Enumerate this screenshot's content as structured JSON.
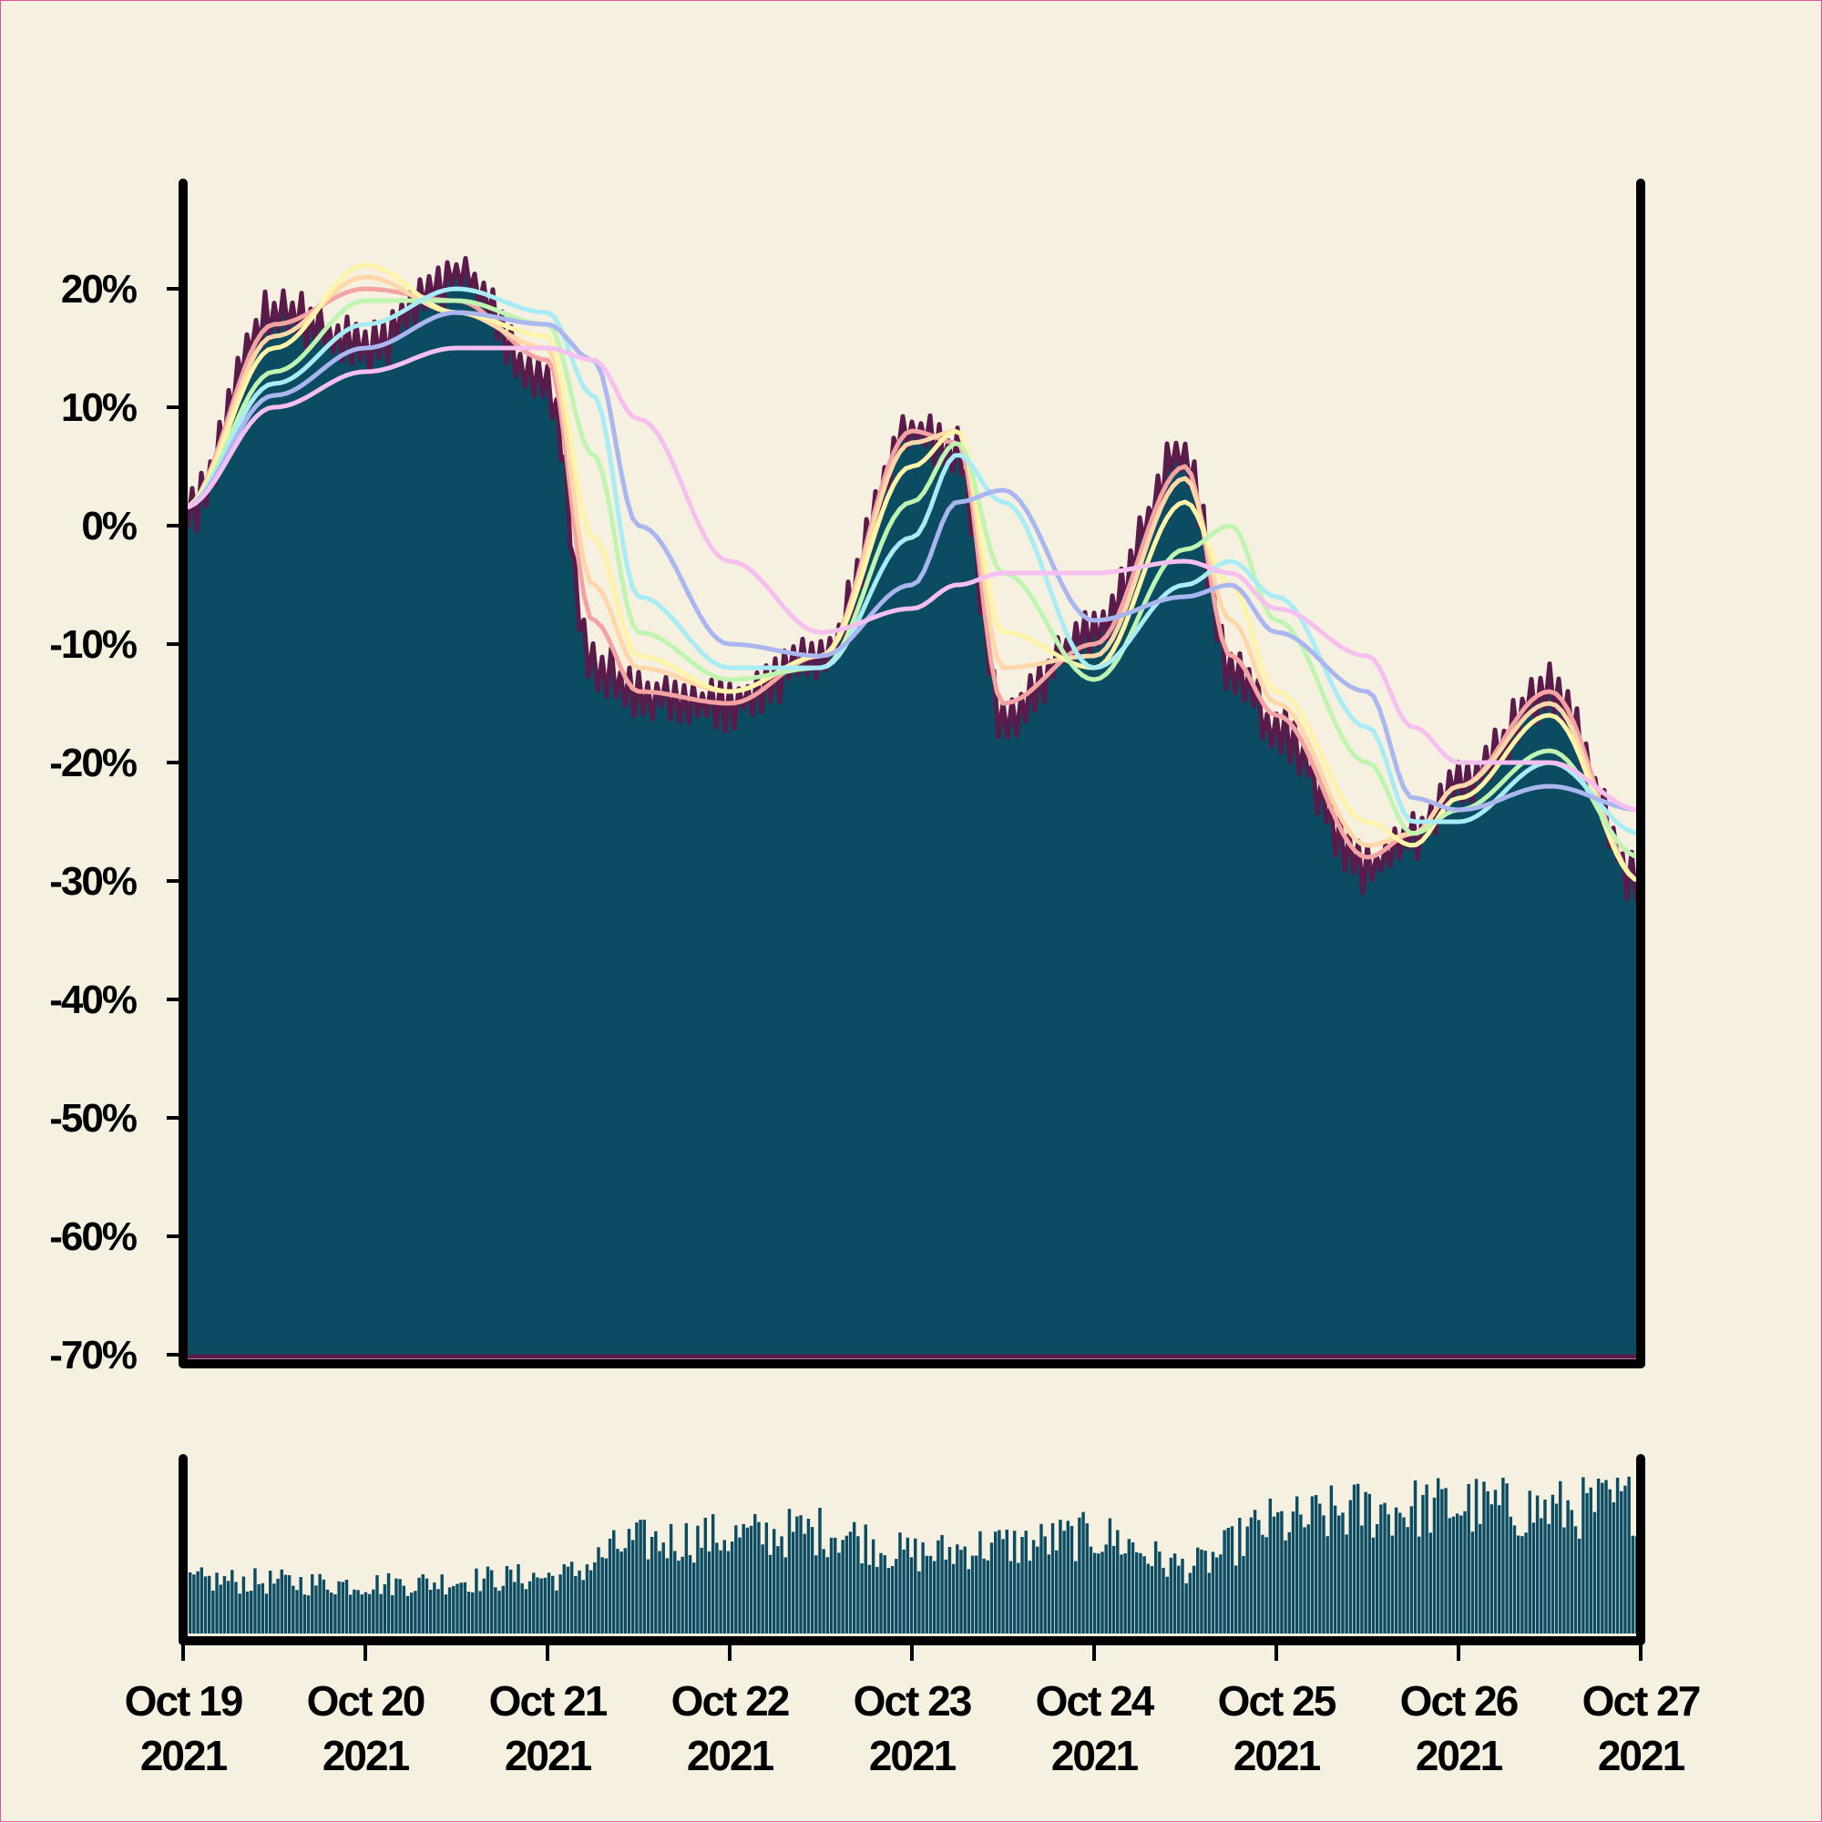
{
  "chart_data": {
    "type": "area",
    "x_start": "2021-10-19",
    "x_end": "2021-10-27",
    "ylim": [
      -70,
      28
    ],
    "y_ticks": [
      {
        "value": 20,
        "label": "20%"
      },
      {
        "value": 10,
        "label": "10%"
      },
      {
        "value": 0,
        "label": "0%"
      },
      {
        "value": -10,
        "label": "-10%"
      },
      {
        "value": -20,
        "label": "-20%"
      },
      {
        "value": -30,
        "label": "-30%"
      },
      {
        "value": -40,
        "label": "-40%"
      },
      {
        "value": -50,
        "label": "-50%"
      },
      {
        "value": -60,
        "label": "-60%"
      },
      {
        "value": -70,
        "label": "-70%"
      }
    ],
    "x_ticks": [
      {
        "value": "2021-10-19",
        "line1": "Oct 19",
        "line2": "2021"
      },
      {
        "value": "2021-10-20",
        "line1": "Oct 20",
        "line2": "2021"
      },
      {
        "value": "2021-10-21",
        "line1": "Oct 21",
        "line2": "2021"
      },
      {
        "value": "2021-10-22",
        "line1": "Oct 22",
        "line2": "2021"
      },
      {
        "value": "2021-10-23",
        "line1": "Oct 23",
        "line2": "2021"
      },
      {
        "value": "2021-10-24",
        "line1": "Oct 24",
        "line2": "2021"
      },
      {
        "value": "2021-10-25",
        "line1": "Oct 25",
        "line2": "2021"
      },
      {
        "value": "2021-10-26",
        "line1": "Oct 26",
        "line2": "2021"
      },
      {
        "value": "2021-10-27",
        "line1": "Oct 27",
        "line2": "2021"
      }
    ],
    "price_change_pct": {
      "x": [
        "2021-10-19",
        "2021-10-19 12:00",
        "2021-10-20",
        "2021-10-20 12:00",
        "2021-10-21",
        "2021-10-21 06:00",
        "2021-10-21 12:00",
        "2021-10-22",
        "2021-10-22 12:00",
        "2021-10-23",
        "2021-10-23 06:00",
        "2021-10-23 12:00",
        "2021-10-24",
        "2021-10-24 12:00",
        "2021-10-24 18:00",
        "2021-10-25",
        "2021-10-25 12:00",
        "2021-10-25 18:00",
        "2021-10-26",
        "2021-10-26 12:00",
        "2021-10-27"
      ],
      "y": [
        1,
        18,
        15,
        21,
        12,
        -12,
        -14,
        -15,
        -11,
        8,
        6,
        -16,
        -9,
        6,
        -12,
        -17,
        -29,
        -26,
        -22,
        -14,
        -30
      ]
    },
    "moving_averages": [
      {
        "color": "#f4a3a3",
        "x": [
          "2021-10-19",
          "2021-10-19 12:00",
          "2021-10-20",
          "2021-10-20 12:00",
          "2021-10-21",
          "2021-10-21 06:00",
          "2021-10-21 12:00",
          "2021-10-22",
          "2021-10-22 12:00",
          "2021-10-23",
          "2021-10-23 06:00",
          "2021-10-23 12:00",
          "2021-10-24",
          "2021-10-24 12:00",
          "2021-10-24 18:00",
          "2021-10-25",
          "2021-10-25 12:00",
          "2021-10-25 18:00",
          "2021-10-26",
          "2021-10-26 12:00",
          "2021-10-27"
        ],
        "y": [
          1.5,
          17,
          20,
          19,
          14,
          -8,
          -14,
          -15,
          -11,
          8,
          7,
          -15,
          -10,
          5,
          -11,
          -16,
          -28,
          -26,
          -22,
          -14,
          -30
        ]
      },
      {
        "color": "#ffd7a8",
        "x": [
          "2021-10-19",
          "2021-10-19 12:00",
          "2021-10-20",
          "2021-10-20 12:00",
          "2021-10-21",
          "2021-10-21 06:00",
          "2021-10-21 12:00",
          "2021-10-22",
          "2021-10-22 12:00",
          "2021-10-23",
          "2021-10-23 06:00",
          "2021-10-23 12:00",
          "2021-10-24",
          "2021-10-24 12:00",
          "2021-10-24 18:00",
          "2021-10-25",
          "2021-10-25 12:00",
          "2021-10-25 18:00",
          "2021-10-26",
          "2021-10-26 12:00",
          "2021-10-27"
        ],
        "y": [
          1.5,
          16,
          21,
          18,
          15,
          -5,
          -12,
          -14,
          -11,
          7,
          8,
          -12,
          -11,
          4,
          -8,
          -15,
          -27,
          -26,
          -22,
          -15,
          -30
        ]
      },
      {
        "color": "#fff4a8",
        "x": [
          "2021-10-19",
          "2021-10-19 12:00",
          "2021-10-20",
          "2021-10-20 12:00",
          "2021-10-21",
          "2021-10-21 06:00",
          "2021-10-21 12:00",
          "2021-10-22",
          "2021-10-22 12:00",
          "2021-10-23",
          "2021-10-23 06:00",
          "2021-10-23 12:00",
          "2021-10-24",
          "2021-10-24 12:00",
          "2021-10-24 18:00",
          "2021-10-25",
          "2021-10-25 12:00",
          "2021-10-25 18:00",
          "2021-10-26",
          "2021-10-26 12:00",
          "2021-10-27"
        ],
        "y": [
          1.5,
          15,
          22,
          18,
          16,
          -1,
          -11,
          -14,
          -11,
          5,
          8,
          -9,
          -12,
          2,
          -5,
          -14,
          -25,
          -27,
          -23,
          -16,
          -30
        ]
      },
      {
        "color": "#bff5b0",
        "x": [
          "2021-10-19",
          "2021-10-19 12:00",
          "2021-10-20",
          "2021-10-20 12:00",
          "2021-10-21",
          "2021-10-21 06:00",
          "2021-10-21 12:00",
          "2021-10-22",
          "2021-10-22 12:00",
          "2021-10-23",
          "2021-10-23 06:00",
          "2021-10-23 12:00",
          "2021-10-24",
          "2021-10-24 12:00",
          "2021-10-24 18:00",
          "2021-10-25",
          "2021-10-25 12:00",
          "2021-10-25 18:00",
          "2021-10-26",
          "2021-10-26 12:00",
          "2021-10-27"
        ],
        "y": [
          1.5,
          13,
          19,
          19,
          17,
          6,
          -9,
          -13,
          -12,
          2,
          7,
          -4,
          -13,
          -2,
          0,
          -8,
          -20,
          -26,
          -24,
          -19,
          -28
        ]
      },
      {
        "color": "#a8ecf5",
        "x": [
          "2021-10-19",
          "2021-10-19 12:00",
          "2021-10-20",
          "2021-10-20 12:00",
          "2021-10-21",
          "2021-10-21 06:00",
          "2021-10-21 12:00",
          "2021-10-22",
          "2021-10-22 12:00",
          "2021-10-23",
          "2021-10-23 06:00",
          "2021-10-23 12:00",
          "2021-10-24",
          "2021-10-24 12:00",
          "2021-10-24 18:00",
          "2021-10-25",
          "2021-10-25 12:00",
          "2021-10-25 18:00",
          "2021-10-26",
          "2021-10-26 12:00",
          "2021-10-27"
        ],
        "y": [
          1.5,
          12,
          17,
          20,
          18,
          11,
          -6,
          -12,
          -12,
          -1,
          6,
          2,
          -12,
          -5,
          -3,
          -6,
          -17,
          -25,
          -25,
          -20,
          -26
        ]
      },
      {
        "color": "#aab6f0",
        "x": [
          "2021-10-19",
          "2021-10-19 12:00",
          "2021-10-20",
          "2021-10-20 12:00",
          "2021-10-21",
          "2021-10-21 06:00",
          "2021-10-21 12:00",
          "2021-10-22",
          "2021-10-22 12:00",
          "2021-10-23",
          "2021-10-23 06:00",
          "2021-10-23 12:00",
          "2021-10-24",
          "2021-10-24 12:00",
          "2021-10-24 18:00",
          "2021-10-25",
          "2021-10-25 12:00",
          "2021-10-25 18:00",
          "2021-10-26",
          "2021-10-26 12:00",
          "2021-10-27"
        ],
        "y": [
          1.5,
          11,
          15,
          18,
          17,
          14,
          0,
          -10,
          -11,
          -5,
          2,
          3,
          -8,
          -6,
          -5,
          -9,
          -14,
          -23,
          -24,
          -22,
          -24
        ]
      },
      {
        "color": "#f5c0ef",
        "x": [
          "2021-10-19",
          "2021-10-19 12:00",
          "2021-10-20",
          "2021-10-20 12:00",
          "2021-10-21",
          "2021-10-21 06:00",
          "2021-10-21 12:00",
          "2021-10-22",
          "2021-10-22 12:00",
          "2021-10-23",
          "2021-10-23 06:00",
          "2021-10-23 12:00",
          "2021-10-24",
          "2021-10-24 12:00",
          "2021-10-24 18:00",
          "2021-10-25",
          "2021-10-25 12:00",
          "2021-10-25 18:00",
          "2021-10-26",
          "2021-10-26 12:00",
          "2021-10-27"
        ],
        "y": [
          1.5,
          10,
          13,
          15,
          15,
          14,
          9,
          -3,
          -9,
          -7,
          -5,
          -4,
          -4,
          -3,
          -4,
          -7,
          -11,
          -17,
          -20,
          -20,
          -24
        ]
      }
    ],
    "volume": {
      "x": [
        "2021-10-19",
        "2021-10-20",
        "2021-10-21",
        "2021-10-21 12:00",
        "2021-10-22",
        "2021-10-22 12:00",
        "2021-10-23",
        "2021-10-23 12:00",
        "2021-10-24",
        "2021-10-24 12:00",
        "2021-10-25",
        "2021-10-25 12:00",
        "2021-10-26",
        "2021-10-26 12:00",
        "2021-10-27"
      ],
      "y": [
        0.3,
        0.28,
        0.32,
        0.52,
        0.55,
        0.58,
        0.45,
        0.5,
        0.55,
        0.38,
        0.62,
        0.7,
        0.72,
        0.7,
        0.74
      ]
    },
    "colors": {
      "background": "#f6f0e0",
      "area_fill": "#0b4c63",
      "area_edge": "#5a1a4a",
      "volume_fill": "#0b4c63",
      "axis": "#000000"
    },
    "grid": false
  }
}
